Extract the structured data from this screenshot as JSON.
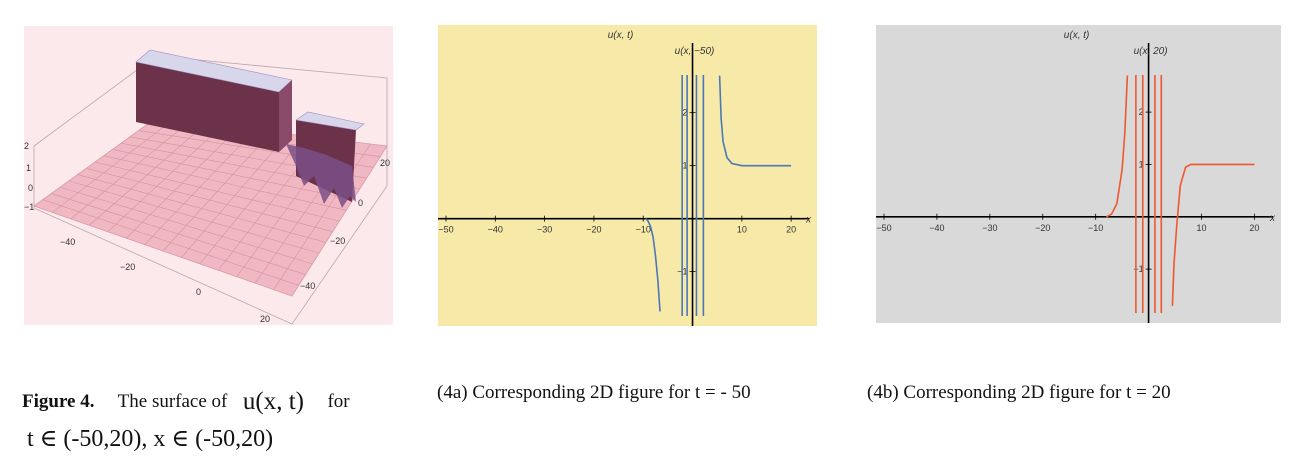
{
  "figure3d": {
    "z_ticks": [
      "2",
      "1",
      "0",
      "−1"
    ],
    "x_ticks": [
      "−40",
      "−20",
      "0",
      "20"
    ],
    "y_ticks": [
      "20",
      "0",
      "−20",
      "−40"
    ],
    "colors": {
      "surface": "#f0b8c3",
      "wall": "#6b3249",
      "top": "#d8d6ea"
    }
  },
  "captions": {
    "fig4_label": "Figure 4.",
    "fig4_text": "The surface of",
    "fig4_func": "u(x, t)",
    "fig4_for": "for",
    "fig4_domain": "t ∈ (-50,20), x ∈ (-50,20)",
    "fig4a": "(4a) Corresponding 2D figure for t = - 50",
    "fig4b": "(4b) Corresponding 2D figure for t = 20"
  },
  "chart_data": [
    {
      "type": "line",
      "background": "#f7eaa9",
      "color": "#4a78b8",
      "ylabel_top": "u(x, t)",
      "ylabel": "u(x, −50)",
      "xlabel": "x",
      "xlim": [
        -50,
        22
      ],
      "ylim": [
        -1.8,
        2.9
      ],
      "x_ticks": [
        -50,
        -40,
        -30,
        -20,
        -10,
        10,
        20
      ],
      "y_ticks": [
        2,
        1,
        -1
      ],
      "segments": [
        [
          [
            -9.5,
            0
          ],
          [
            -9,
            -0.05
          ],
          [
            -8.5,
            -0.15
          ],
          [
            -8,
            -0.35
          ],
          [
            -7.5,
            -0.7
          ],
          [
            -7,
            -1.2
          ],
          [
            -6.6,
            -1.75
          ]
        ],
        [
          [
            5.5,
            2.7
          ],
          [
            5.8,
            1.9
          ],
          [
            6.2,
            1.45
          ],
          [
            7,
            1.15
          ],
          [
            8,
            1.04
          ],
          [
            10,
            1.0
          ],
          [
            20,
            1.0
          ]
        ]
      ],
      "verticals": [
        -2.1,
        -1.1,
        0.8,
        2.2
      ]
    },
    {
      "type": "line",
      "background": "#d9d9d9",
      "color": "#f0572f",
      "ylabel_top": "u(x, t)",
      "ylabel": "u(x, 20)",
      "xlabel": "x",
      "xlim": [
        -50,
        22
      ],
      "ylim": [
        -1.8,
        2.9
      ],
      "x_ticks": [
        -50,
        -40,
        -30,
        -20,
        -10,
        10,
        20
      ],
      "y_ticks": [
        2,
        1,
        -1
      ],
      "segments": [
        [
          [
            -8,
            0
          ],
          [
            -7,
            0.05
          ],
          [
            -6,
            0.25
          ],
          [
            -5,
            0.9
          ],
          [
            -4.5,
            1.6
          ],
          [
            -4,
            2.7
          ]
        ],
        [
          [
            4.5,
            -1.7
          ],
          [
            4.8,
            -0.9
          ],
          [
            5.3,
            -0.2
          ],
          [
            6,
            0.6
          ],
          [
            7,
            0.95
          ],
          [
            8,
            1.0
          ],
          [
            10,
            1.0
          ],
          [
            20,
            1.0
          ]
        ]
      ],
      "verticals": [
        -2.4,
        -1.1,
        1.2,
        2.4
      ]
    }
  ]
}
